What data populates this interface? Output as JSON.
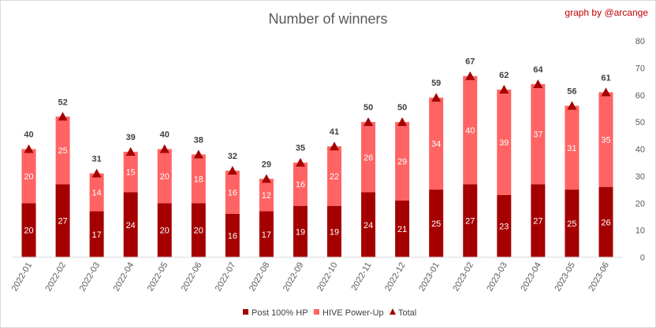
{
  "chart_data": {
    "type": "bar",
    "stacked": true,
    "title": "Number of winners",
    "credit": "graph by @arcange",
    "categories": [
      "2022-01",
      "2022-02",
      "2022-03",
      "2022-04",
      "2022-05",
      "2022-06",
      "2022-07",
      "2022-08",
      "2022-09",
      "2022-10",
      "2022-11",
      "2022-12",
      "2023-01",
      "2023-02",
      "2023-03",
      "2023-04",
      "2023-05",
      "2023-06"
    ],
    "series": [
      {
        "name": "Post 100% HP",
        "color": "#a50000",
        "values": [
          20,
          27,
          17,
          24,
          20,
          20,
          16,
          17,
          19,
          19,
          24,
          21,
          25,
          27,
          23,
          27,
          25,
          26
        ]
      },
      {
        "name": "HIVE Power-Up",
        "color": "#ff6363",
        "values": [
          20,
          25,
          14,
          15,
          20,
          18,
          16,
          12,
          16,
          22,
          26,
          29,
          34,
          40,
          39,
          37,
          31,
          35
        ]
      },
      {
        "name": "Total",
        "color": "#a50000",
        "marker": "triangle",
        "values": [
          40,
          52,
          31,
          39,
          40,
          38,
          32,
          29,
          35,
          41,
          50,
          50,
          59,
          67,
          62,
          64,
          56,
          61
        ]
      }
    ],
    "yaxis": {
      "position": "right",
      "min": 0,
      "max": 80,
      "ticks": [
        0,
        10,
        20,
        30,
        40,
        50,
        60,
        70,
        80
      ]
    },
    "grid": false,
    "legend": "bottom"
  }
}
